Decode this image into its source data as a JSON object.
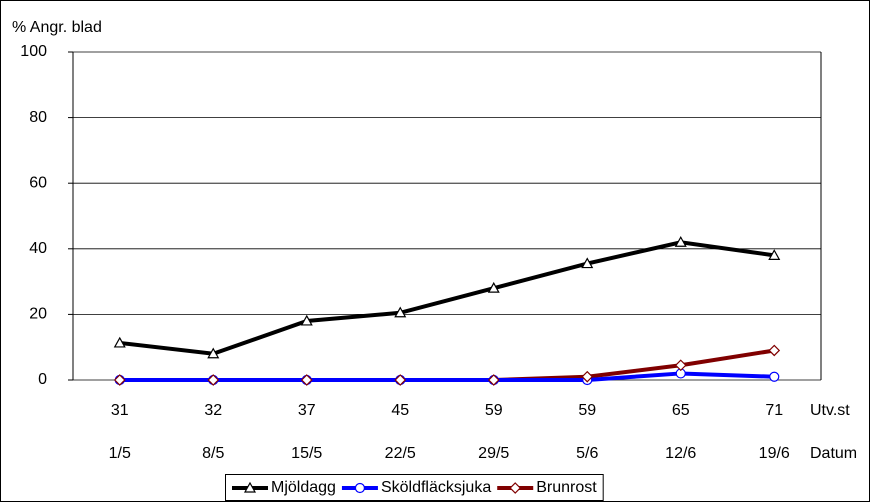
{
  "chart_data": {
    "type": "line",
    "y_axis_label": "% Angr. blad",
    "categories": [
      "31",
      "32",
      "37",
      "45",
      "59",
      "59",
      "65",
      "71"
    ],
    "dates": [
      "1/5",
      "8/5",
      "15/5",
      "22/5",
      "29/5",
      "5/6",
      "12/6",
      "19/6"
    ],
    "category_row_labels": [
      "Utv.st",
      "Datum"
    ],
    "series": [
      {
        "name": "Mjöldagg",
        "color": "#000000",
        "marker": "triangle",
        "values": [
          11.3,
          8,
          18,
          20.5,
          28,
          35.5,
          42,
          38
        ]
      },
      {
        "name": "Sköldfläcksjuka",
        "color": "#0000ff",
        "marker": "circle",
        "values": [
          0,
          0,
          0,
          0,
          0,
          0,
          2,
          1
        ]
      },
      {
        "name": "Brunrost",
        "color": "#800000",
        "marker": "diamond",
        "values": [
          0,
          0,
          0,
          0,
          0,
          1,
          4.5,
          9
        ]
      }
    ],
    "ylim": [
      0,
      100
    ],
    "yticks": [
      0,
      20,
      40,
      60,
      80,
      100
    ],
    "grid": true,
    "legend": "bottom"
  }
}
